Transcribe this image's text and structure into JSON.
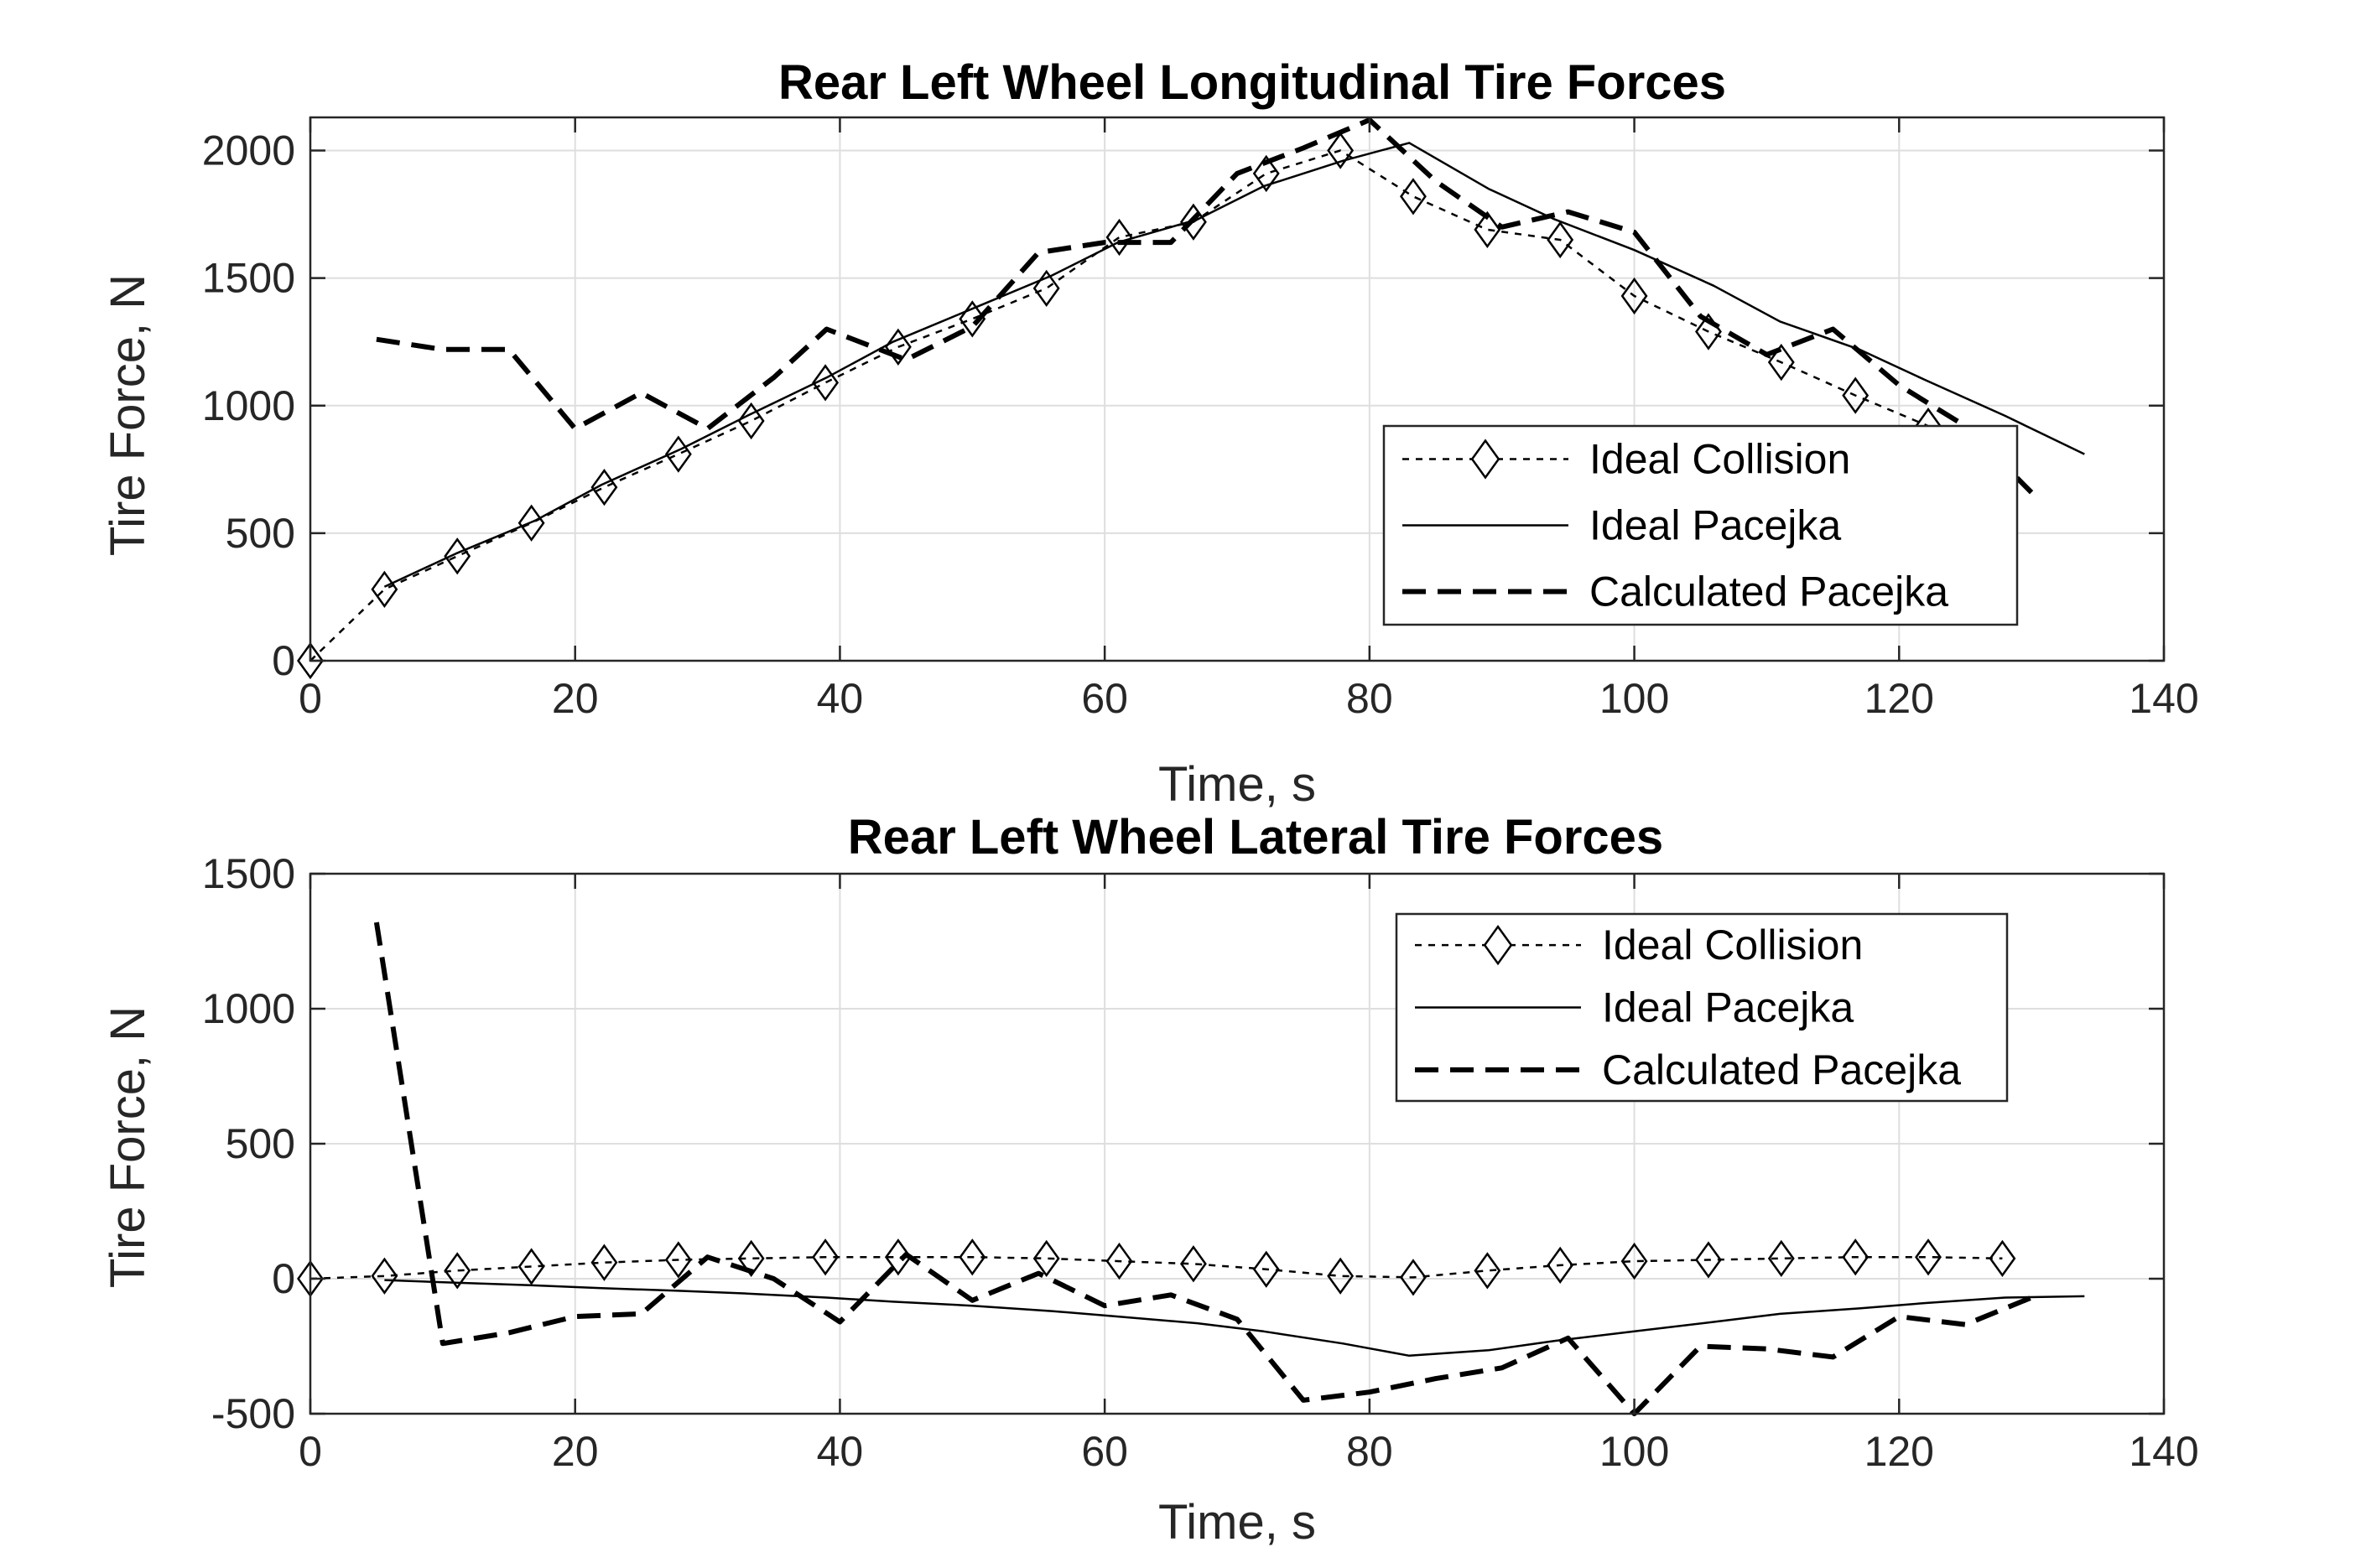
{
  "chart_data": [
    {
      "type": "line",
      "title": "Rear Left Wheel Longitudinal Tire Forces",
      "xlabel": "Time, s",
      "ylabel": "Tire Force, N",
      "xlim": [
        0,
        140
      ],
      "ylim": [
        0,
        2130
      ],
      "xticks": [
        "0",
        "20",
        "40",
        "60",
        "80",
        "100",
        "120",
        "140"
      ],
      "yticks": [
        "0",
        "500",
        "1000",
        "1500",
        "2000"
      ],
      "ytick_values": [
        0,
        500,
        1000,
        1500,
        2000
      ],
      "grid": true,
      "legend_position": "bottom-right",
      "series": [
        {
          "name": "Ideal Collision",
          "style": "dotted-diamond",
          "x": [
            0,
            5.6,
            11.1,
            16.7,
            22.2,
            27.8,
            33.3,
            38.9,
            44.4,
            50,
            55.6,
            61.1,
            66.7,
            72.2,
            77.8,
            83.3,
            88.9,
            94.4,
            100,
            105.6,
            111.1,
            116.7,
            122.2
          ],
          "y": [
            0,
            280,
            410,
            540,
            680,
            810,
            940,
            1090,
            1230,
            1340,
            1460,
            1660,
            1720,
            1910,
            2000,
            1820,
            1690,
            1650,
            1430,
            1290,
            1170,
            1040,
            920
          ]
        },
        {
          "name": "Ideal Pacejka",
          "style": "solid",
          "x": [
            5.6,
            11,
            17,
            22,
            28,
            33,
            39,
            44,
            50,
            56,
            61,
            67,
            72,
            78,
            83,
            89,
            94,
            100,
            106,
            111,
            117,
            122,
            128,
            134
          ],
          "y": [
            290,
            420,
            550,
            690,
            830,
            960,
            1110,
            1250,
            1380,
            1510,
            1640,
            1730,
            1860,
            1960,
            2030,
            1850,
            1730,
            1610,
            1470,
            1330,
            1220,
            1100,
            960,
            810
          ]
        },
        {
          "name": "Calculated Pacejka",
          "style": "dashed",
          "x": [
            5,
            10,
            15,
            20,
            25,
            30,
            35,
            39,
            45,
            50,
            55,
            60,
            65,
            70,
            75,
            80,
            85,
            90,
            95,
            100,
            105,
            110,
            115,
            120,
            125,
            130
          ],
          "y": [
            1260,
            1220,
            1220,
            910,
            1050,
            910,
            1110,
            1300,
            1180,
            1310,
            1600,
            1640,
            1640,
            1910,
            2010,
            2120,
            1880,
            1700,
            1760,
            1680,
            1350,
            1200,
            1300,
            1080,
            920,
            660
          ]
        }
      ]
    },
    {
      "type": "line",
      "title": "Rear Left Wheel Lateral Tire Forces",
      "xlabel": "Time, s",
      "ylabel": "Tire Force, N",
      "xlim": [
        0,
        140
      ],
      "ylim": [
        -500,
        1500
      ],
      "xticks": [
        "0",
        "20",
        "40",
        "60",
        "80",
        "100",
        "120",
        "140"
      ],
      "yticks": [
        "-500",
        "0",
        "500",
        "1000",
        "1500"
      ],
      "ytick_values": [
        -500,
        0,
        500,
        1000,
        1500
      ],
      "grid": true,
      "legend_position": "top-right",
      "series": [
        {
          "name": "Ideal Collision",
          "style": "dotted-diamond",
          "x": [
            0,
            5.6,
            11.1,
            16.7,
            22.2,
            27.8,
            33.3,
            38.9,
            44.4,
            50,
            55.6,
            61.1,
            66.7,
            72.2,
            77.8,
            83.3,
            88.9,
            94.4,
            100,
            105.6,
            111.1,
            116.7,
            122.2,
            127.8
          ],
          "y": [
            0,
            10,
            30,
            45,
            60,
            70,
            75,
            80,
            80,
            80,
            75,
            65,
            55,
            35,
            10,
            5,
            30,
            50,
            65,
            70,
            75,
            80,
            80,
            75
          ]
        },
        {
          "name": "Ideal Pacejka",
          "style": "solid",
          "x": [
            5.6,
            11,
            17,
            22,
            28,
            33,
            39,
            44,
            50,
            56,
            61,
            67,
            72,
            78,
            83,
            89,
            94,
            100,
            106,
            111,
            117,
            122,
            128,
            134
          ],
          "y": [
            -5,
            -15,
            -25,
            -35,
            -45,
            -55,
            -70,
            -85,
            -100,
            -120,
            -140,
            -165,
            -195,
            -240,
            -285,
            -265,
            -230,
            -195,
            -160,
            -130,
            -110,
            -90,
            -70,
            -65
          ]
        },
        {
          "name": "Calculated Pacejka",
          "style": "dashed",
          "x": [
            5,
            10,
            15,
            20,
            25,
            30,
            35,
            40,
            45,
            50,
            55,
            60,
            65,
            70,
            75,
            80,
            85,
            90,
            95,
            100,
            105,
            110,
            115,
            120,
            125,
            130
          ],
          "y": [
            1320,
            -240,
            -200,
            -140,
            -130,
            80,
            0,
            -160,
            90,
            -80,
            20,
            -100,
            -60,
            -150,
            -450,
            -420,
            -370,
            -330,
            -220,
            -500,
            -250,
            -260,
            -290,
            -140,
            -170,
            -70
          ]
        }
      ]
    }
  ]
}
